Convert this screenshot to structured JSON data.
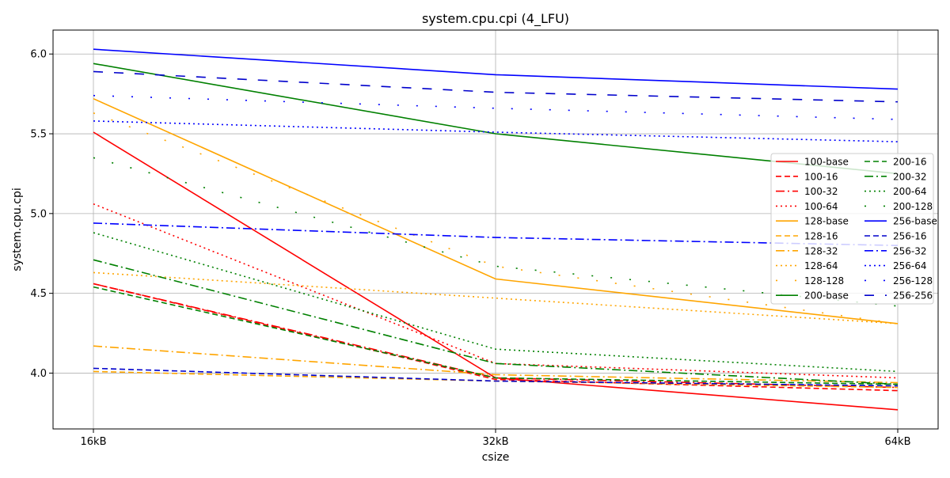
{
  "chart_data": {
    "type": "line",
    "title": "system.cpu.cpi (4_LFU)",
    "xlabel": "csize",
    "ylabel": "system.cpu.cpi",
    "categories": [
      "16kB",
      "32kB",
      "64kB"
    ],
    "ylim": [
      3.65,
      6.15
    ],
    "yticks": [
      "4.0",
      "4.5",
      "5.0",
      "5.5",
      "6.0"
    ],
    "grid": true,
    "legend_position": "right",
    "legend_columns": 2,
    "series": [
      {
        "name": "100-base",
        "color": "#ff0000",
        "style": "solid",
        "values": [
          5.51,
          3.97,
          3.77
        ]
      },
      {
        "name": "100-16",
        "color": "#ff0000",
        "style": "dashed",
        "values": [
          4.56,
          3.96,
          3.89
        ]
      },
      {
        "name": "100-32",
        "color": "#ff0000",
        "style": "dashdot",
        "values": [
          4.56,
          3.97,
          3.91
        ]
      },
      {
        "name": "100-64",
        "color": "#ff0000",
        "style": "dotted",
        "values": [
          5.06,
          4.06,
          3.97
        ]
      },
      {
        "name": "128-base",
        "color": "#ffa500",
        "style": "solid",
        "values": [
          5.72,
          4.59,
          4.31
        ]
      },
      {
        "name": "128-16",
        "color": "#ffa500",
        "style": "dashed",
        "values": [
          4.01,
          3.95,
          3.91
        ]
      },
      {
        "name": "128-32",
        "color": "#ffa500",
        "style": "dashdot",
        "values": [
          4.17,
          3.99,
          3.94
        ]
      },
      {
        "name": "128-64",
        "color": "#ffa500",
        "style": "dotted",
        "values": [
          4.63,
          4.47,
          4.31
        ]
      },
      {
        "name": "128-128",
        "color": "#ffa500",
        "style": "loosedot",
        "values": [
          5.63,
          4.67,
          4.31
        ]
      },
      {
        "name": "200-base",
        "color": "#008000",
        "style": "solid",
        "values": [
          5.94,
          5.5,
          5.25
        ]
      },
      {
        "name": "200-16",
        "color": "#008000",
        "style": "dashed",
        "values": [
          4.54,
          3.97,
          3.93
        ]
      },
      {
        "name": "200-32",
        "color": "#008000",
        "style": "dashdot",
        "values": [
          4.71,
          4.06,
          3.93
        ]
      },
      {
        "name": "200-64",
        "color": "#008000",
        "style": "dotted",
        "values": [
          4.88,
          4.15,
          4.01
        ]
      },
      {
        "name": "200-128",
        "color": "#008000",
        "style": "loosedot",
        "values": [
          5.35,
          4.67,
          4.42
        ]
      },
      {
        "name": "256-base",
        "color": "#0000ff",
        "style": "solid",
        "values": [
          6.03,
          5.87,
          5.78
        ]
      },
      {
        "name": "256-16",
        "color": "#0000cc",
        "style": "dashed",
        "values": [
          4.03,
          3.95,
          3.92
        ]
      },
      {
        "name": "256-32",
        "color": "#0000ff",
        "style": "dashdot",
        "values": [
          4.94,
          4.85,
          4.8
        ]
      },
      {
        "name": "256-64",
        "color": "#0000ff",
        "style": "dotted",
        "values": [
          5.58,
          5.51,
          5.45
        ]
      },
      {
        "name": "256-128",
        "color": "#0000ff",
        "style": "loosedot",
        "values": [
          5.74,
          5.66,
          5.59
        ]
      },
      {
        "name": "256-256",
        "color": "#0000cc",
        "style": "loosedash",
        "values": [
          5.89,
          5.76,
          5.7
        ]
      }
    ]
  }
}
